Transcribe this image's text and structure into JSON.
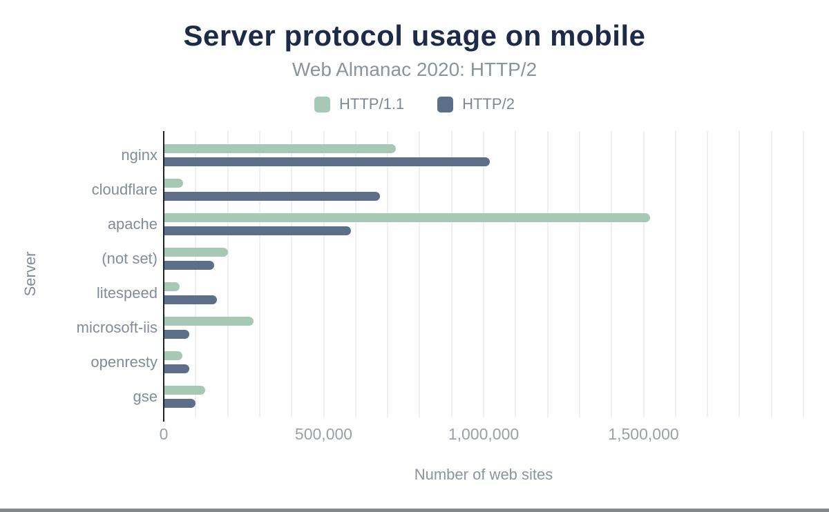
{
  "page": {
    "background": "#ffffff",
    "bottom_bar_color": "#85878a"
  },
  "chart_data": {
    "type": "bar",
    "orientation": "horizontal",
    "title": "Server protocol usage on mobile",
    "subtitle": "Web Almanac 2020: HTTP/2",
    "xlabel": "Number of web sites",
    "ylabel": "Server",
    "categories": [
      "nginx",
      "cloudflare",
      "apache",
      "(not set)",
      "litespeed",
      "microsoft-iis",
      "openresty",
      "gse"
    ],
    "series": [
      {
        "name": "HTTP/1.1",
        "color": "#a6c9b6",
        "values": [
          725000,
          60000,
          1520000,
          200000,
          50000,
          280000,
          58000,
          130000
        ]
      },
      {
        "name": "HTTP/2",
        "color": "#5d6e89",
        "values": [
          1020000,
          675000,
          585000,
          158000,
          167000,
          80000,
          80000,
          100000
        ]
      }
    ],
    "xlim": [
      0,
      2000000
    ],
    "grid": {
      "visible": true,
      "interval": 100000,
      "color": "#efeff2"
    },
    "x_ticks": [
      {
        "value": 0,
        "label": "0"
      },
      {
        "value": 500000,
        "label": "500,000"
      },
      {
        "value": 1000000,
        "label": "1,000,000"
      },
      {
        "value": 1500000,
        "label": "1,500,000"
      }
    ],
    "legend_position": "top",
    "text_colors": {
      "title": "#1d2b49",
      "subtitle": "#8d939d",
      "legend": "#7f8793",
      "category_labels": "#848b97",
      "tick_labels": "#9aa0a7"
    },
    "axis_line_color": "#202124"
  }
}
